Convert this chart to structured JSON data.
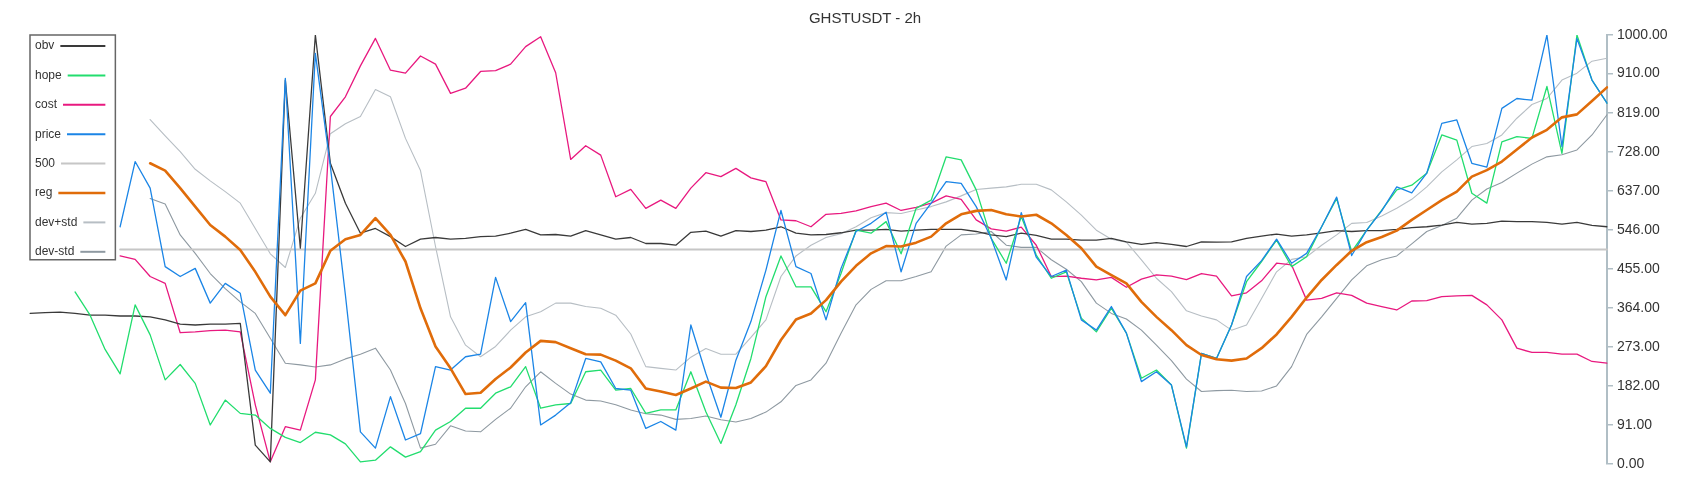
{
  "chart_data": {
    "type": "line",
    "title": "GHSTUSDT - 2h",
    "categories": [
      null,
      null,
      null,
      null,
      null,
      null,
      null,
      null,
      null,
      null,
      null,
      null,
      null,
      null,
      null,
      null,
      null,
      null,
      null,
      null,
      null,
      null,
      null,
      null,
      null,
      null,
      null,
      null,
      null,
      null,
      null,
      null,
      null,
      null,
      null,
      null,
      null,
      null,
      null,
      null,
      null,
      null,
      null,
      null,
      null,
      null,
      null,
      null,
      null,
      null,
      null,
      null,
      null,
      null,
      null,
      null,
      null,
      null,
      null,
      null,
      null,
      null,
      null,
      null,
      null,
      null,
      null,
      null,
      null,
      null,
      null,
      null,
      null,
      null,
      null,
      null,
      null,
      null,
      null,
      null,
      null,
      null,
      null,
      null,
      null,
      null,
      null,
      null,
      null,
      null,
      null,
      null,
      null,
      null,
      null,
      null,
      null,
      null,
      null,
      null,
      null,
      null,
      null,
      null,
      null,
      null
    ],
    "series": [
      {
        "name": "obv",
        "color": "#3a3a3a",
        "values": [
          351,
          353,
          354,
          351,
          347,
          347,
          345,
          345,
          343,
          336,
          326,
          324,
          326,
          326,
          328,
          44,
          5,
          895,
          503,
          1000,
          701,
          608,
          538,
          549,
          530,
          507,
          524,
          528,
          524,
          526,
          530,
          531,
          538,
          547,
          534,
          535,
          531,
          544,
          534,
          524,
          528,
          514,
          514,
          510,
          540,
          543,
          531,
          544,
          542,
          545,
          553,
          538,
          534,
          535,
          539,
          545,
          545,
          547,
          543,
          545,
          547,
          547,
          547,
          542,
          534,
          530,
          538,
          533,
          524,
          524,
          522,
          522,
          526,
          518,
          512,
          516,
          512,
          507,
          518,
          517,
          518,
          526,
          531,
          536,
          531,
          534,
          539,
          544,
          542,
          544,
          544,
          547,
          551,
          553,
          557,
          563,
          559,
          561,
          566,
          565,
          565,
          563,
          559,
          563,
          556,
          553
        ]
      },
      {
        "name": "hope",
        "color": "#22dd6e",
        "values": [
          null,
          null,
          null,
          401,
          347,
          267,
          210,
          371,
          301,
          196,
          232,
          188,
          91,
          149,
          118,
          114,
          83,
          62,
          50,
          74,
          68,
          47,
          5,
          9,
          40,
          16,
          29,
          79,
          99,
          130,
          130,
          165,
          180,
          227,
          130,
          138,
          141,
          215,
          219,
          172,
          176,
          118,
          126,
          126,
          215,
          122,
          48,
          138,
          246,
          390,
          485,
          413,
          413,
          355,
          444,
          545,
          538,
          565,
          490,
          596,
          615,
          716,
          709,
          639,
          526,
          468,
          577,
          487,
          433,
          448,
          340,
          308,
          363,
          305,
          200,
          219,
          184,
          37,
          258,
          246,
          324,
          425,
          472,
          522,
          460,
          483,
          553,
          619,
          495,
          545,
          592,
          639,
          650,
          678,
          767,
          755,
          631,
          608,
          751,
          763,
          759,
          880,
          724,
          1000,
          895,
          841
        ]
      },
      {
        "name": "cost",
        "color": "#e8197f",
        "values": [
          null,
          null,
          null,
          null,
          null,
          null,
          485,
          477,
          437,
          421,
          306,
          308,
          311,
          312,
          308,
          138,
          5,
          87,
          79,
          196,
          810,
          856,
          928,
          992,
          918,
          911,
          951,
          932,
          864,
          876,
          915,
          917,
          932,
          973,
          996,
          912,
          710,
          742,
          720,
          623,
          640,
          596,
          615,
          596,
          643,
          679,
          670,
          689,
          667,
          658,
          569,
          567,
          553,
          582,
          584,
          590,
          600,
          608,
          591,
          598,
          608,
          625,
          617,
          569,
          548,
          543,
          552,
          510,
          437,
          438,
          433,
          429,
          435,
          412,
          431,
          441,
          438,
          430,
          444,
          438,
          392,
          399,
          427,
          468,
          464,
          382,
          386,
          399,
          393,
          375,
          367,
          359,
          380,
          381,
          390,
          392,
          393,
          371,
          336,
          270,
          260,
          260,
          256,
          256,
          239,
          235
        ]
      },
      {
        "name": "price",
        "color": "#1b85e6",
        "values": [
          null,
          null,
          null,
          null,
          null,
          null,
          553,
          705,
          643,
          460,
          437,
          456,
          375,
          421,
          398,
          219,
          165,
          899,
          281,
          957,
          693,
          394,
          75,
          37,
          157,
          56,
          71,
          227,
          219,
          250,
          256,
          435,
          332,
          376,
          91,
          114,
          143,
          246,
          238,
          176,
          172,
          83,
          99,
          79,
          324,
          211,
          109,
          242,
          332,
          452,
          591,
          460,
          444,
          336,
          456,
          542,
          561,
          587,
          448,
          561,
          608,
          658,
          654,
          600,
          526,
          429,
          586,
          482,
          437,
          452,
          336,
          312,
          367,
          305,
          192,
          215,
          184,
          40,
          258,
          246,
          324,
          437,
          474,
          524,
          468,
          491,
          553,
          622,
          486,
          545,
          590,
          646,
          632,
          678,
          794,
          802,
          701,
          692,
          829,
          852,
          848,
          1000,
          740,
          992,
          895,
          841
        ]
      },
      {
        "name": "500",
        "color": "#c6c6c6",
        "values": [
          null,
          null,
          null,
          null,
          null,
          null,
          500,
          500,
          500,
          500,
          500,
          500,
          500,
          500,
          500,
          500,
          500,
          500,
          500,
          500,
          500,
          500,
          500,
          500,
          500,
          500,
          500,
          500,
          500,
          500,
          500,
          500,
          500,
          500,
          500,
          500,
          500,
          500,
          500,
          500,
          500,
          500,
          500,
          500,
          500,
          500,
          500,
          500,
          500,
          500,
          500,
          500,
          500,
          500,
          500,
          500,
          500,
          500,
          500,
          500,
          500,
          500,
          500,
          500,
          500,
          500,
          500,
          500,
          500,
          500,
          500,
          500,
          500,
          500,
          500,
          500,
          500,
          500,
          500,
          500,
          500,
          500,
          500,
          500,
          500,
          500,
          500,
          500,
          500,
          500,
          500,
          500,
          500,
          500,
          500,
          500,
          500,
          500,
          500,
          500,
          500,
          500,
          500,
          500,
          500,
          500
        ]
      },
      {
        "name": "reg",
        "color": "#e06c0a",
        "values": [
          null,
          null,
          null,
          null,
          null,
          null,
          null,
          null,
          701,
          684,
          643,
          600,
          557,
          530,
          499,
          448,
          390,
          347,
          404,
          421,
          497,
          524,
          534,
          573,
          534,
          472,
          363,
          274,
          223,
          163,
          166,
          198,
          225,
          260,
          287,
          284,
          270,
          256,
          255,
          241,
          223,
          176,
          169,
          161,
          176,
          192,
          178,
          177,
          190,
          228,
          289,
          337,
          351,
          382,
          425,
          462,
          491,
          508,
          507,
          516,
          530,
          561,
          582,
          590,
          592,
          582,
          577,
          581,
          561,
          534,
          503,
          460,
          440,
          421,
          378,
          343,
          312,
          277,
          254,
          244,
          241,
          246,
          270,
          302,
          343,
          388,
          429,
          464,
          497,
          517,
          529,
          544,
          569,
          592,
          615,
          635,
          670,
          685,
          705,
          733,
          761,
          779,
          808,
          815,
          846,
          878
        ]
      },
      {
        "name": "dev+std",
        "color": "#b7bec4",
        "values": [
          null,
          null,
          null,
          null,
          null,
          null,
          null,
          null,
          803,
          765,
          728,
          687,
          660,
          635,
          608,
          549,
          490,
          458,
          573,
          631,
          770,
          793,
          810,
          873,
          856,
          759,
          684,
          507,
          343,
          277,
          250,
          274,
          312,
          343,
          355,
          375,
          375,
          367,
          363,
          347,
          303,
          227,
          223,
          219,
          249,
          269,
          256,
          256,
          295,
          336,
          437,
          485,
          510,
          528,
          537,
          553,
          574,
          586,
          584,
          592,
          600,
          611,
          625,
          640,
          643,
          646,
          652,
          652,
          639,
          611,
          580,
          545,
          524,
          517,
          476,
          433,
          402,
          357,
          345,
          336,
          312,
          324,
          386,
          448,
          477,
          483,
          510,
          534,
          561,
          563,
          578,
          596,
          617,
          646,
          681,
          709,
          740,
          747,
          767,
          806,
          838,
          852,
          895,
          911,
          939,
          946
        ]
      },
      {
        "name": "dev-std",
        "color": "#8e99a1",
        "values": [
          null,
          null,
          null,
          null,
          null,
          null,
          null,
          null,
          619,
          606,
          534,
          491,
          444,
          409,
          378,
          351,
          293,
          235,
          231,
          226,
          231,
          245,
          256,
          270,
          219,
          141,
          37,
          46,
          89,
          77,
          75,
          104,
          130,
          180,
          215,
          188,
          163,
          149,
          147,
          138,
          126,
          117,
          114,
          104,
          106,
          112,
          103,
          98,
          106,
          121,
          145,
          183,
          196,
          235,
          305,
          371,
          407,
          427,
          427,
          437,
          448,
          508,
          534,
          536,
          542,
          510,
          505,
          505,
          476,
          454,
          425,
          375,
          351,
          338,
          312,
          277,
          241,
          198,
          169,
          171,
          172,
          169,
          170,
          182,
          227,
          302,
          343,
          386,
          429,
          462,
          476,
          485,
          513,
          542,
          556,
          573,
          615,
          641,
          656,
          678,
          699,
          716,
          721,
          732,
          767,
          814
        ]
      }
    ],
    "ylim": [
      0,
      1000
    ],
    "yticks": [
      {
        "value": 0,
        "label": "0.00"
      },
      {
        "value": 91,
        "label": "91.00"
      },
      {
        "value": 182,
        "label": "182.00"
      },
      {
        "value": 273,
        "label": "273.00"
      },
      {
        "value": 364,
        "label": "364.00"
      },
      {
        "value": 455,
        "label": "455.00"
      },
      {
        "value": 546,
        "label": "546.00"
      },
      {
        "value": 637,
        "label": "637.00"
      },
      {
        "value": 728,
        "label": "728.00"
      },
      {
        "value": 819,
        "label": "819.00"
      },
      {
        "value": 910,
        "label": "910.00"
      },
      {
        "value": 1000,
        "label": "1000.00"
      }
    ],
    "grid": false,
    "legend": "top left",
    "tick_labels": "y",
    "marker": "none"
  }
}
